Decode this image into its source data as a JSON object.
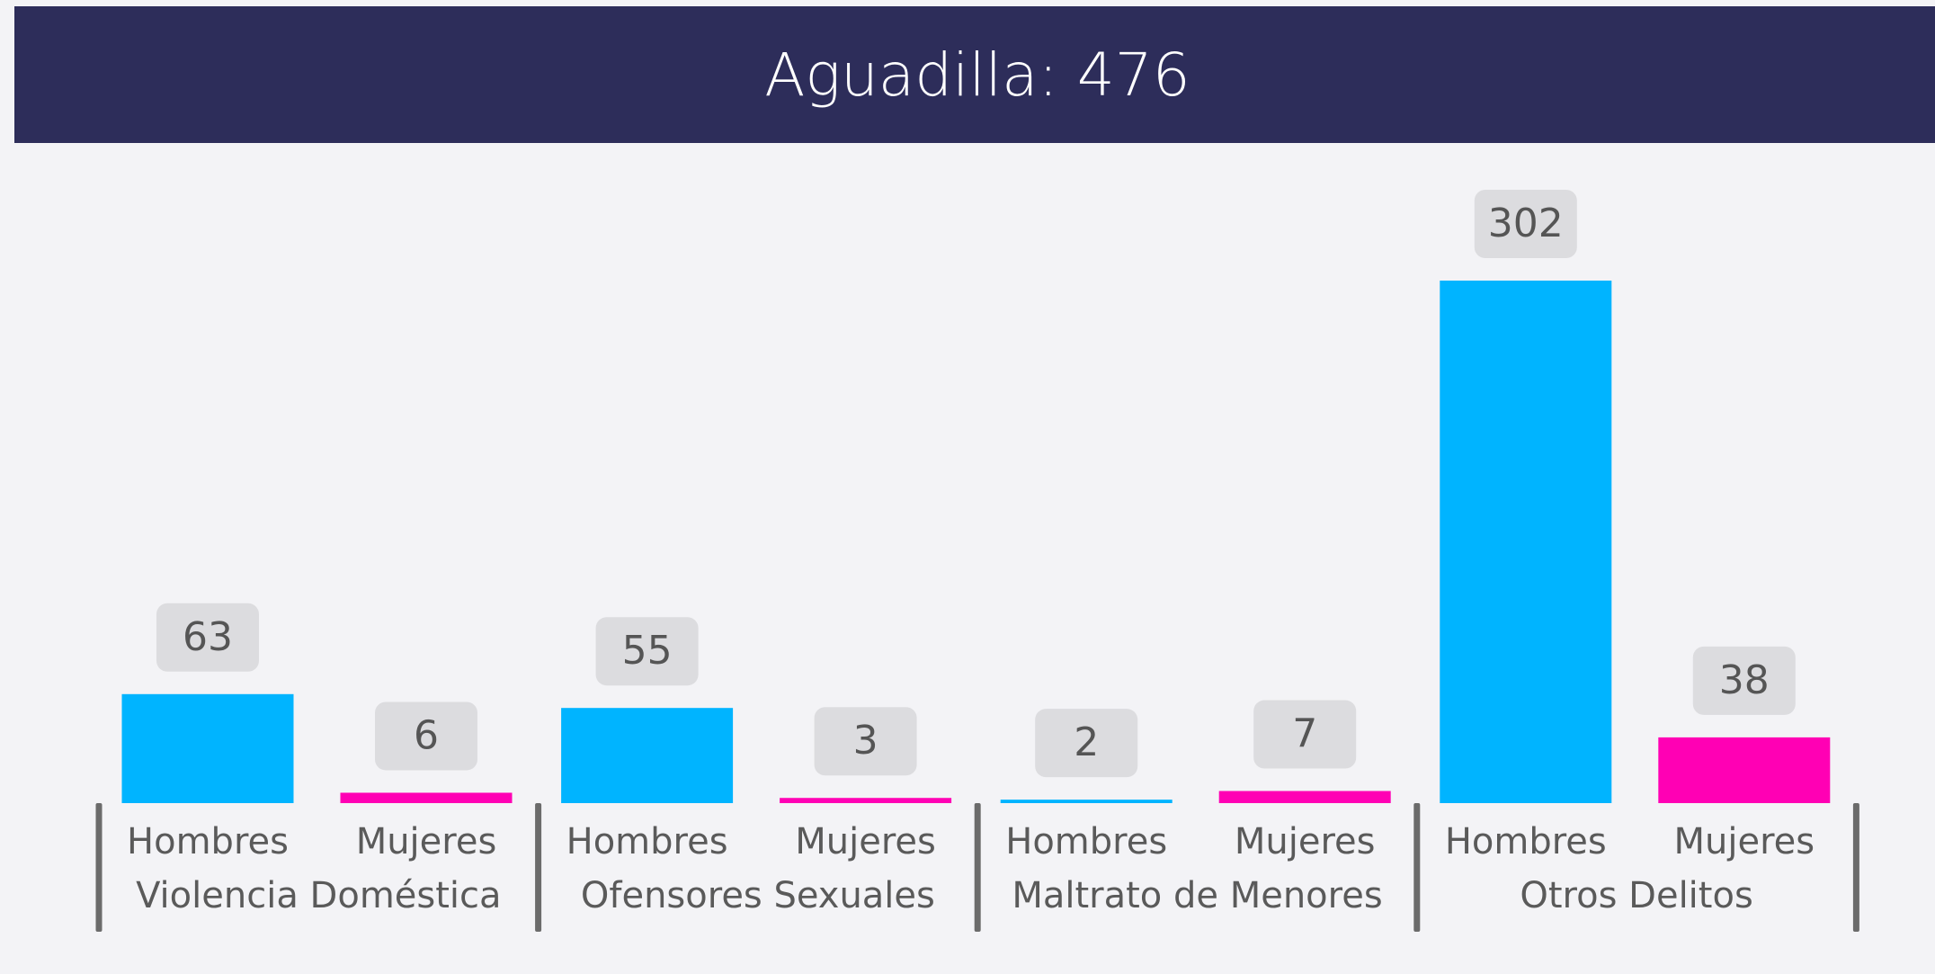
{
  "chart_data": {
    "type": "bar",
    "title": "Aguadilla: 476",
    "categories": [
      "Violencia Doméstica",
      "Ofensores Sexuales",
      "Maltrato de Menores",
      "Otros Delitos"
    ],
    "series": [
      {
        "name": "Hombres",
        "color": "#00b4ff",
        "values": [
          63,
          55,
          2,
          302
        ]
      },
      {
        "name": "Mujeres",
        "color": "#ff00b4",
        "values": [
          6,
          3,
          7,
          38
        ]
      }
    ]
  }
}
